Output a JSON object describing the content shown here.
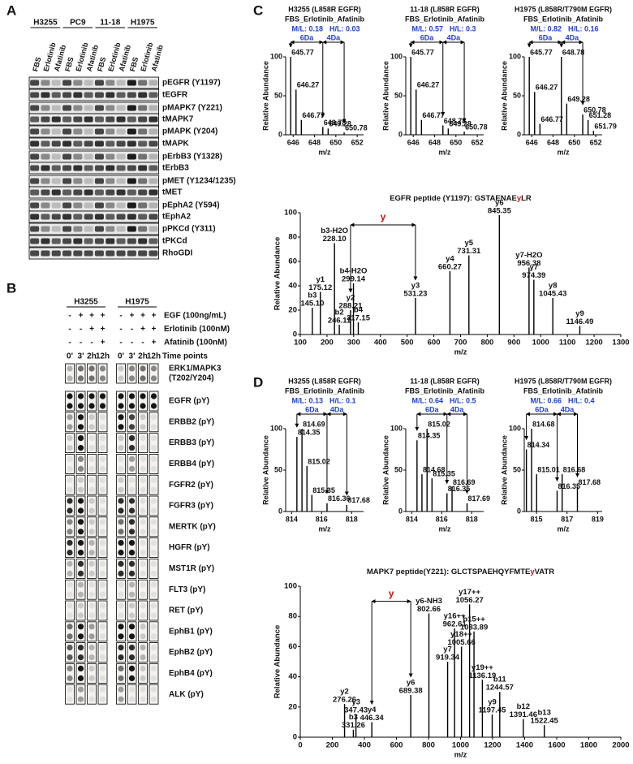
{
  "panel_labels": [
    "A",
    "B",
    "C",
    "D"
  ],
  "A": {
    "cell_lines": [
      "H3255",
      "PC9",
      "11-18",
      "H1975"
    ],
    "lanes": [
      "FBS",
      "Erlotinib",
      "Afatinib",
      "FBS",
      "Erlotinib",
      "Afatinib",
      "FBS",
      "Erlotinib",
      "Afatinib",
      "FBS",
      "Erlotinib",
      "Afatinib"
    ],
    "blots": [
      "pEGFR (Y1197)",
      "tEGFR",
      "pMAPK7 (Y221)",
      "tMAPK7",
      "pMAPK (Y204)",
      "tMAPK",
      "pErbB3 (Y1328)",
      "tErbB3",
      "pMET (Y1234/1235)",
      "tMET",
      "pEphA2 (Y594)",
      "tEphA2",
      "pPKCd (Y311)",
      "tPKCd",
      "RhoGDI"
    ]
  },
  "B": {
    "cell_lines": [
      "H3255",
      "H1975"
    ],
    "treatments": [
      {
        "label": "EGF (100ng/mL)",
        "signs": [
          "-",
          "+",
          "+",
          "+",
          "-",
          "+",
          "+",
          "+"
        ]
      },
      {
        "label": "Erlotinib (100nM)",
        "signs": [
          "-",
          "-",
          "+",
          "+",
          "-",
          "-",
          "+",
          "+"
        ]
      },
      {
        "label": "Afatinib (100nM)",
        "signs": [
          "-",
          "-",
          "-",
          "+",
          "-",
          "-",
          "-",
          "+"
        ]
      }
    ],
    "time_label": "Time points",
    "time_points": [
      "0'",
      "3'",
      "2h",
      "12h",
      "0'",
      "3'",
      "2h",
      "12h"
    ],
    "arrays": [
      [
        "ERK1/MAPK3",
        "(T202/Y204)"
      ],
      [
        "EGFR (pY)"
      ],
      [
        "ERBB2 (pY)"
      ],
      [
        "ERBB3 (pY)"
      ],
      [
        "ERBB4 (pY)"
      ],
      [
        "FGFR2 (pY)"
      ],
      [
        "FGFR3 (pY)"
      ],
      [
        "MERTK (pY)"
      ],
      [
        "HGFR (pY)"
      ],
      [
        "MST1R (pY)"
      ],
      [
        "FLT3 (pY)"
      ],
      [
        "RET (pY)"
      ],
      [
        "EphB1 (pY)"
      ],
      [
        "EphB2 (pY)"
      ],
      [
        "EphB4 (pY)"
      ],
      [
        "ALK (pY)"
      ]
    ]
  },
  "C": {
    "insets": [
      {
        "title": [
          "H3255 (L858R EGFR)",
          "FBS_Erlotinib_Afatinib"
        ],
        "ratios": [
          "M/L: 0.18",
          "H/L: 0.03"
        ],
        "shift_labels": [
          "6Da",
          "4Da"
        ],
        "xlabel": "m/z",
        "ylabel": "Relative Abundance",
        "xlim": [
          645.3,
          652.6
        ],
        "xticks": [
          646,
          648,
          650,
          652
        ],
        "ylim": [
          0,
          100
        ],
        "yticks": [
          0,
          50,
          100
        ],
        "peaks": {
          "x": [
            645.77,
            646.27,
            646.77,
            648.78,
            649.28,
            650.78
          ],
          "values": [
            100,
            58,
            19,
            10,
            8,
            3
          ]
        }
      },
      {
        "title": [
          "11-18 (L858R EGFR)",
          "FBS_Erlotinib_Afatinib"
        ],
        "ratios": [
          "M/L: 0.57",
          "H/L: 0.3"
        ],
        "shift_labels": [
          "6Da",
          "4Da"
        ],
        "xlabel": "m/z",
        "ylabel": "Relative Abundance",
        "xlim": [
          645.3,
          652.6
        ],
        "xticks": [
          646,
          648,
          650,
          652
        ],
        "ylim": [
          0,
          100
        ],
        "yticks": [
          0,
          50,
          100
        ],
        "peaks": {
          "x": [
            645.77,
            646.27,
            646.77,
            648.78,
            649.28,
            650.78
          ],
          "values": [
            100,
            58,
            19,
            12,
            8,
            4
          ]
        }
      },
      {
        "title": [
          "H1975 (L858R/T790M EGFR)",
          "FBS_Erlotinib_Afatinib"
        ],
        "ratios": [
          "M/L: 0.82",
          "H/L: 0.16"
        ],
        "shift_labels": [
          "6Da",
          "4Da"
        ],
        "xlabel": "m/z",
        "ylabel": "Relative Abundance",
        "xlim": [
          645.3,
          652.6
        ],
        "xticks": [
          646,
          648,
          650,
          652
        ],
        "ylim": [
          0,
          100
        ],
        "yticks": [
          0,
          50,
          100
        ],
        "peaks": {
          "x": [
            645.77,
            646.27,
            646.77,
            648.78,
            649.28,
            650.78,
            651.28,
            651.79
          ],
          "values": [
            100,
            55,
            14,
            100,
            40,
            26,
            19,
            5
          ]
        }
      }
    ],
    "main": {
      "title_parts": [
        "EGFR  peptide (Y1197): GSTAENAE",
        "y",
        "LR"
      ],
      "gap_label": "y",
      "xlabel": "m/z",
      "ylabel": "Relative Abundance",
      "xlim": [
        100,
        1300
      ],
      "xticks": [
        100,
        200,
        300,
        400,
        500,
        600,
        700,
        800,
        900,
        1000,
        1100,
        1200,
        1300
      ],
      "ylim": [
        0,
        100
      ],
      "yticks": [
        0,
        20,
        40,
        60,
        80,
        100
      ],
      "peaks": {
        "ions": [
          "b3",
          "y1",
          "b3-H2O",
          "b2",
          "y2",
          "b4-H2O",
          "b4",
          "y3",
          "y4",
          "y5",
          "y6",
          "y7-H2O",
          "y7",
          "y8",
          "y9"
        ],
        "x": [
          {
            "value": 145.1,
            "label": "145.10"
          },
          175.12,
          {
            "value": 228.1,
            "label": "228.10"
          },
          246.11,
          288.21,
          299.14,
          317.15,
          531.23,
          660.27,
          731.31,
          845.35,
          956.38,
          974.39,
          1045.43,
          1146.49
        ],
        "values": [
          22,
          35,
          75,
          8,
          20,
          42,
          10,
          30,
          52,
          65,
          98,
          55,
          45,
          30,
          7
        ]
      }
    }
  },
  "D": {
    "insets": [
      {
        "title": [
          "H3255 (L858R EGFR)",
          "FBS_Erlotinib_Afatinib"
        ],
        "ratios": [
          "M/L: 0.13",
          "H/L: 0.1"
        ],
        "shift_labels": [
          "6Da",
          "4Da"
        ],
        "xlabel": "m/z",
        "ylabel": "Relative Abundance",
        "xlim": [
          813.6,
          818.8
        ],
        "xticks": [
          814,
          816,
          818
        ],
        "ylim": [
          0,
          100
        ],
        "yticks": [
          0,
          50,
          100
        ],
        "peaks": {
          "x": [
            814.35,
            814.69,
            815.02,
            815.35,
            816.36,
            817.68
          ],
          "values": [
            90,
            100,
            55,
            20,
            10,
            8
          ]
        }
      },
      {
        "title": [
          "11-18 (L858R EGFR)",
          "FBS_Erlotinib_Afatinib"
        ],
        "ratios": [
          "M/L: 0.64",
          "H/L: 0.5"
        ],
        "shift_labels": [
          "6Da",
          "4Da"
        ],
        "xlabel": "m/z",
        "ylabel": "Relative Abundance",
        "xlim": [
          813.6,
          818.8
        ],
        "xticks": [
          814,
          816,
          818
        ],
        "ylim": [
          0,
          100
        ],
        "yticks": [
          0,
          50,
          100
        ],
        "peaks": {
          "x": [
            814.35,
            814.68,
            815.02,
            815.35,
            816.35,
            816.69,
            817.69
          ],
          "values": [
            86,
            45,
            100,
            40,
            22,
            30,
            10
          ]
        }
      },
      {
        "title": [
          "H1975 (L858R/T790M EGFR)",
          "FBS_Erlotinib_Afatinib"
        ],
        "ratios": [
          "M/L: 0.66",
          "H/L: 0.4"
        ],
        "shift_labels": [
          "6Da",
          "4Da"
        ],
        "xlabel": "m/z",
        "ylabel": "Relative Abundance",
        "xlim": [
          814.2,
          819.3
        ],
        "xticks": [
          815,
          817,
          819
        ],
        "ylim": [
          0,
          100
        ],
        "yticks": [
          0,
          50,
          100
        ],
        "peaks": {
          "x": [
            814.34,
            814.68,
            815.01,
            816.35,
            816.68,
            817.68
          ],
          "values": [
            75,
            100,
            45,
            25,
            45,
            30
          ]
        }
      }
    ],
    "main": {
      "title_parts": [
        "MAPK7 peptide(Y221): GLCTSPAEHQYFMTE",
        "y",
        "VATR"
      ],
      "gap_label": "y",
      "xlabel": "m/z",
      "ylabel": "Relative Abundance",
      "xlim": [
        0,
        2000
      ],
      "xticks": [
        0,
        200,
        400,
        600,
        800,
        1000,
        1200,
        1400,
        1600,
        1800,
        2000
      ],
      "ylim": [
        0,
        100
      ],
      "yticks": [
        0,
        20,
        40,
        60,
        80,
        100
      ],
      "peaks": {
        "ions": [
          "y2",
          "b3",
          "y3",
          "y4",
          "y6",
          "y6-NH3",
          "y7",
          "y16++",
          "y18++",
          "y17++",
          "b15++",
          "y19++",
          "y9",
          "b11",
          "b12",
          "b13"
        ],
        "x": [
          276.26,
          331.26,
          347.43,
          446.34,
          689.38,
          802.66,
          919.34,
          962.61,
          1005.66,
          1056.27,
          1083.89,
          1136.19,
          1197.45,
          1244.57,
          1391.46,
          1522.45
        ],
        "values": [
          22,
          5,
          15,
          10,
          28,
          82,
          50,
          72,
          60,
          88,
          70,
          38,
          15,
          30,
          12,
          8
        ]
      }
    }
  }
}
